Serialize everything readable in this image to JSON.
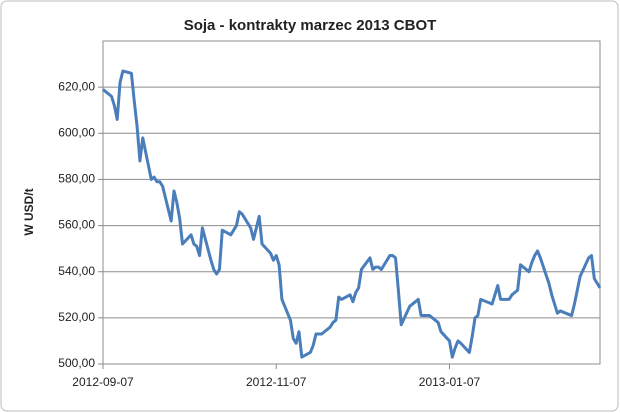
{
  "chart_data": {
    "type": "line",
    "title": "Soja - kontrakty marzec 2013 CBOT",
    "y_label": "W USD/t",
    "x": [
      "2012-09-07",
      "2012-09-10",
      "2012-09-11",
      "2012-09-12",
      "2012-09-13",
      "2012-09-14",
      "2012-09-17",
      "2012-09-18",
      "2012-09-19",
      "2012-09-20",
      "2012-09-21",
      "2012-09-24",
      "2012-09-25",
      "2012-09-26",
      "2012-09-27",
      "2012-09-28",
      "2012-10-01",
      "2012-10-02",
      "2012-10-03",
      "2012-10-04",
      "2012-10-05",
      "2012-10-08",
      "2012-10-09",
      "2012-10-10",
      "2012-10-11",
      "2012-10-12",
      "2012-10-15",
      "2012-10-16",
      "2012-10-17",
      "2012-10-18",
      "2012-10-19",
      "2012-10-22",
      "2012-10-23",
      "2012-10-24",
      "2012-10-25",
      "2012-10-26",
      "2012-10-29",
      "2012-10-30",
      "2012-10-31",
      "2012-11-01",
      "2012-11-02",
      "2012-11-05",
      "2012-11-06",
      "2012-11-07",
      "2012-11-08",
      "2012-11-09",
      "2012-11-12",
      "2012-11-13",
      "2012-11-14",
      "2012-11-15",
      "2012-11-16",
      "2012-11-19",
      "2012-11-20",
      "2012-11-21",
      "2012-11-23",
      "2012-11-26",
      "2012-11-27",
      "2012-11-28",
      "2012-11-29",
      "2012-11-30",
      "2012-12-03",
      "2012-12-04",
      "2012-12-05",
      "2012-12-06",
      "2012-12-07",
      "2012-12-10",
      "2012-12-11",
      "2012-12-12",
      "2012-12-13",
      "2012-12-14",
      "2012-12-17",
      "2012-12-18",
      "2012-12-19",
      "2012-12-20",
      "2012-12-21",
      "2012-12-24",
      "2012-12-26",
      "2012-12-27",
      "2012-12-28",
      "2012-12-31",
      "2013-01-02",
      "2013-01-03",
      "2013-01-04",
      "2013-01-07",
      "2013-01-08",
      "2013-01-09",
      "2013-01-10",
      "2013-01-11",
      "2013-01-14",
      "2013-01-15",
      "2013-01-16",
      "2013-01-17",
      "2013-01-18",
      "2013-01-22",
      "2013-01-23",
      "2013-01-24",
      "2013-01-25",
      "2013-01-28",
      "2013-01-29",
      "2013-01-30",
      "2013-01-31",
      "2013-02-01",
      "2013-02-04",
      "2013-02-05",
      "2013-02-06",
      "2013-02-07",
      "2013-02-08",
      "2013-02-11",
      "2013-02-12",
      "2013-02-13",
      "2013-02-14",
      "2013-02-15",
      "2013-02-19",
      "2013-02-20",
      "2013-02-21",
      "2013-02-22",
      "2013-02-25",
      "2013-02-26",
      "2013-02-27",
      "2013-02-28",
      "2013-03-01"
    ],
    "series": [
      {
        "name": "Soja",
        "color": "#4a7ebb",
        "values": [
          619,
          616,
          612,
          606,
          622,
          627,
          626,
          614,
          603,
          588,
          598,
          580,
          581,
          579,
          579,
          577,
          562,
          575,
          570,
          563,
          552,
          556,
          552,
          551,
          547,
          559,
          545,
          541,
          539,
          541,
          558,
          556,
          558,
          560,
          566,
          565,
          559,
          554,
          559,
          564,
          552,
          548,
          545,
          547,
          543,
          528,
          519,
          511,
          509,
          514,
          503,
          505,
          508,
          513,
          513,
          516,
          518,
          519,
          529,
          528,
          530,
          527,
          531,
          533,
          541,
          546,
          541,
          542,
          542,
          541,
          547,
          547,
          546,
          532,
          517,
          525,
          527,
          528,
          521,
          521,
          519,
          518,
          514,
          510,
          503,
          507,
          510,
          509,
          505,
          512,
          520,
          521,
          528,
          526,
          530,
          534,
          528,
          528,
          530,
          531,
          532,
          543,
          540,
          544,
          547,
          549,
          546,
          535,
          530,
          526,
          522,
          523,
          521,
          526,
          532,
          538,
          546,
          547,
          537,
          535,
          533
        ]
      }
    ],
    "xlim": [
      "2012-09-07",
      "2013-03-01"
    ],
    "xticks": [
      "2012-09-07",
      "2012-11-07",
      "2013-01-07"
    ],
    "ylim": [
      500,
      640
    ],
    "yticks": [
      {
        "value": 500,
        "label": "500,00"
      },
      {
        "value": 520,
        "label": "520,00"
      },
      {
        "value": 540,
        "label": "540,00"
      },
      {
        "value": 560,
        "label": "560,00"
      },
      {
        "value": 580,
        "label": "580,00"
      },
      {
        "value": 600,
        "label": "600,00"
      },
      {
        "value": 620,
        "label": "620,00"
      }
    ],
    "grid": true
  }
}
